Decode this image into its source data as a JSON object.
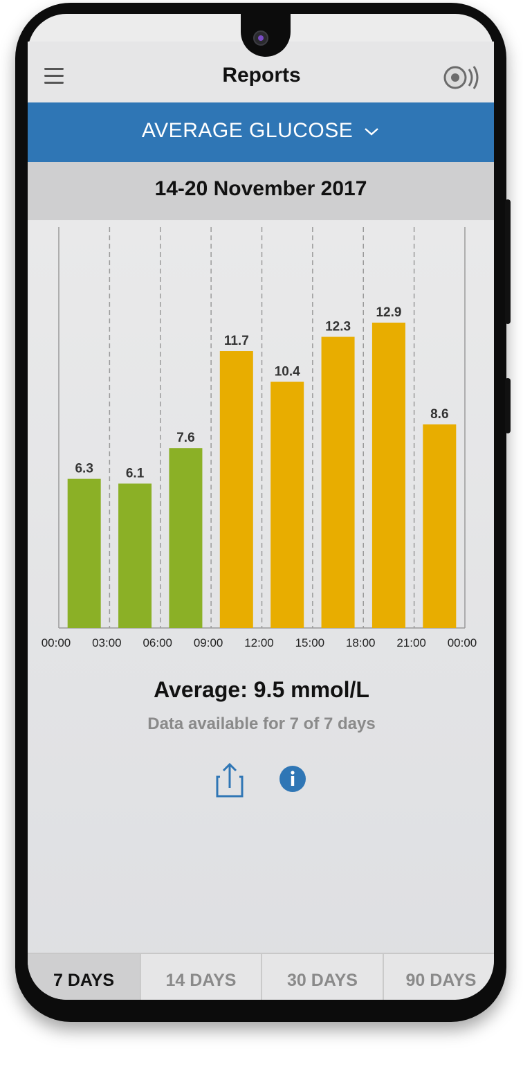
{
  "header": {
    "title": "Reports",
    "menu_icon": "hamburger-menu-icon",
    "sensor_icon": "sensor-scan-icon"
  },
  "report_selector": {
    "label": "AVERAGE GLUCOSE",
    "icon": "chevron-down-icon"
  },
  "date_range": "14-20 November 2017",
  "chart_data": {
    "type": "bar",
    "categories": [
      "00:00-03:00",
      "03:00-06:00",
      "06:00-09:00",
      "09:00-12:00",
      "12:00-15:00",
      "15:00-18:00",
      "18:00-21:00",
      "21:00-00:00"
    ],
    "values": [
      6.3,
      6.1,
      7.6,
      11.7,
      10.4,
      12.3,
      12.9,
      8.6
    ],
    "value_labels": [
      "6.3",
      "6.1",
      "7.6",
      "11.7",
      "10.4",
      "12.3",
      "12.9",
      "8.6"
    ],
    "x_tick_labels": [
      "00:00",
      "03:00",
      "06:00",
      "09:00",
      "12:00",
      "15:00",
      "18:00",
      "21:00",
      "00:00"
    ],
    "bar_colors": [
      "#8bb026",
      "#8bb026",
      "#8bb026",
      "#e8ad00",
      "#e8ad00",
      "#e8ad00",
      "#e8ad00",
      "#e8ad00"
    ],
    "ylim": [
      0,
      20
    ],
    "grid": "vertical dashed",
    "legend": "none"
  },
  "summary": {
    "average": "Average: 9.5 mmol/L",
    "availability": "Data available for 7 of 7 days"
  },
  "actions": {
    "share_icon": "share-icon",
    "info_icon": "info-icon"
  },
  "tabs": [
    {
      "label": "7 DAYS",
      "active": true
    },
    {
      "label": "14 DAYS",
      "active": false
    },
    {
      "label": "30 DAYS",
      "active": false
    },
    {
      "label": "90 DAYS",
      "active": false
    }
  ],
  "colors": {
    "accent": "#2f76b5",
    "in_range": "#8bb026",
    "high": "#e8ad00"
  }
}
